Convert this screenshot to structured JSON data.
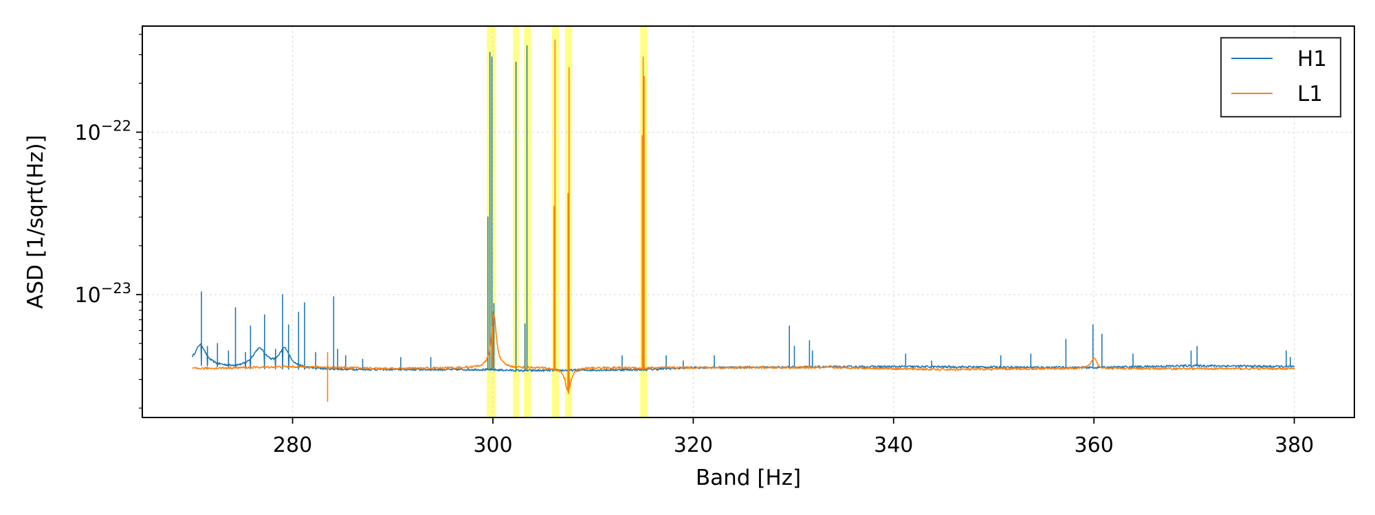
{
  "chart_data": {
    "type": "line",
    "xlabel": "Band [Hz]",
    "ylabel": "ASD [1/sqrt(Hz)]",
    "xlim": [
      265,
      386
    ],
    "ylim": [
      1.75e-24,
      4.5e-22
    ],
    "yscale": "log",
    "grid": true,
    "legend_placement": "top-right",
    "x_ticks": [
      280,
      300,
      320,
      340,
      360,
      380
    ],
    "x_tick_labels": [
      "280",
      "300",
      "320",
      "340",
      "360",
      "380"
    ],
    "y_ticks": [
      1e-23,
      1e-22
    ],
    "y_tick_labels": [
      {
        "base": "10",
        "exp": "−23"
      },
      {
        "base": "10",
        "exp": "−22"
      }
    ],
    "highlight_bands": [
      [
        299.4,
        300.3
      ],
      [
        302.0,
        302.6
      ],
      [
        303.1,
        303.8
      ],
      [
        305.9,
        306.6
      ],
      [
        307.2,
        307.9
      ],
      [
        314.7,
        315.4
      ]
    ],
    "highlight_color": "#ffff66",
    "baseline_range": [
      270,
      380
    ],
    "series": [
      {
        "name": "H1",
        "color": "#1f77b4",
        "baseline": [
          [
            270,
            3.7e-24
          ],
          [
            275,
            3.5e-24
          ],
          [
            285,
            3.45e-24
          ],
          [
            299,
            3.45e-24
          ],
          [
            303,
            3.4e-24
          ],
          [
            315,
            3.45e-24
          ],
          [
            320,
            3.55e-24
          ],
          [
            340,
            3.6e-24
          ],
          [
            360,
            3.55e-24
          ],
          [
            370,
            3.65e-24
          ],
          [
            380,
            3.6e-24
          ]
        ],
        "bumps": [
          [
            270.8,
            4.9e-24,
            0.6
          ],
          [
            276.7,
            4.6e-24,
            0.8
          ],
          [
            279.2,
            4.6e-24,
            0.6
          ]
        ],
        "spikes": [
          [
            270.9,
            1.04e-23
          ],
          [
            271.5,
            4.8e-24
          ],
          [
            272.5,
            5e-24
          ],
          [
            273.6,
            4.5e-24
          ],
          [
            274.3,
            8.3e-24
          ],
          [
            275.3,
            4.4e-24
          ],
          [
            275.8,
            6.4e-24
          ],
          [
            277.2,
            7.5e-24
          ],
          [
            278.3,
            4.6e-24
          ],
          [
            279.0,
            1e-23
          ],
          [
            279.6,
            6.5e-24
          ],
          [
            280.6,
            7.8e-24
          ],
          [
            281.2,
            8.9e-24
          ],
          [
            282.3,
            4.4e-24
          ],
          [
            284.1,
            9.7e-24
          ],
          [
            284.5,
            4.6e-24
          ],
          [
            285.3,
            4.2e-24
          ],
          [
            287.0,
            4e-24
          ],
          [
            290.8,
            4.1e-24
          ],
          [
            293.8,
            4.1e-24
          ],
          [
            299.5,
            3e-23
          ],
          [
            299.7,
            3.1e-22
          ],
          [
            299.9,
            2.9e-22
          ],
          [
            300.1,
            8.8e-24
          ],
          [
            302.3,
            2.7e-22
          ],
          [
            303.2,
            6.6e-24
          ],
          [
            303.4,
            3.4e-22
          ],
          [
            312.9,
            4.2e-24
          ],
          [
            317.3,
            4.2e-24
          ],
          [
            319.0,
            3.9e-24
          ],
          [
            322.1,
            4.2e-24
          ],
          [
            329.6,
            6.4e-24
          ],
          [
            330.1,
            4.8e-24
          ],
          [
            331.6,
            5.2e-24
          ],
          [
            331.9,
            4.5e-24
          ],
          [
            341.2,
            4.3e-24
          ],
          [
            343.8,
            3.9e-24
          ],
          [
            350.7,
            4.2e-24
          ],
          [
            353.7,
            4.3e-24
          ],
          [
            357.2,
            5.3e-24
          ],
          [
            359.9,
            6.5e-24
          ],
          [
            360.8,
            5.7e-24
          ],
          [
            363.9,
            4.3e-24
          ],
          [
            369.7,
            4.5e-24
          ],
          [
            370.3,
            4.8e-24
          ],
          [
            379.2,
            4.5e-24
          ],
          [
            379.6,
            4.1e-24
          ]
        ]
      },
      {
        "name": "L1",
        "color": "#ff7f0e",
        "baseline": [
          [
            270,
            3.5e-24
          ],
          [
            280,
            3.6e-24
          ],
          [
            290,
            3.5e-24
          ],
          [
            299,
            3.55e-24
          ],
          [
            310,
            3.55e-24
          ],
          [
            320,
            3.55e-24
          ],
          [
            335,
            3.55e-24
          ],
          [
            345,
            3.45e-24
          ],
          [
            355,
            3.5e-24
          ],
          [
            365,
            3.5e-24
          ],
          [
            380,
            3.5e-24
          ]
        ],
        "bumps": [
          [
            300.1,
            7.5e-24,
            0.25
          ],
          [
            306.2,
            3.5e-24,
            0.35
          ],
          [
            307.5,
            2.5e-24,
            0.35
          ],
          [
            315.0,
            3.5e-24,
            0.35
          ],
          [
            360.0,
            4.1e-24,
            0.3
          ]
        ],
        "spikes": [
          [
            283.5,
            4.4e-24
          ],
          [
            300.0,
            7.8e-24
          ],
          [
            306.1,
            3.5e-23
          ],
          [
            306.2,
            3.7e-22
          ],
          [
            307.5,
            4.2e-23
          ],
          [
            307.6,
            2.5e-22
          ],
          [
            314.9,
            9.5e-23
          ],
          [
            315.0,
            2.9e-22
          ],
          [
            315.1,
            2.2e-22
          ]
        ],
        "dips": [
          [
            283.5,
            2.2e-24
          ]
        ]
      }
    ]
  }
}
